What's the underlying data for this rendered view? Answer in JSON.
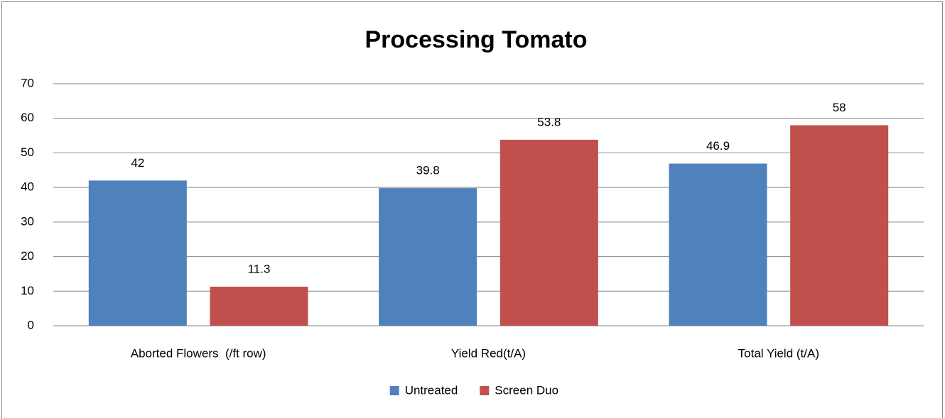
{
  "chart_data": {
    "type": "bar",
    "title": "Processing Tomato",
    "categories": [
      "Aborted Flowers  (/ft row)",
      "Yield Red(t/A)",
      "Total Yield (t/A)"
    ],
    "series": [
      {
        "name": "Untreated",
        "color": "#4f81bd",
        "values": [
          42,
          39.8,
          46.9
        ]
      },
      {
        "name": "Screen Duo",
        "color": "#c0504d",
        "values": [
          11.3,
          53.8,
          58
        ]
      }
    ],
    "ylim": [
      0,
      70
    ],
    "yticks": [
      0,
      10,
      20,
      30,
      40,
      50,
      60,
      70
    ],
    "grid": true,
    "legend": "bottom"
  }
}
